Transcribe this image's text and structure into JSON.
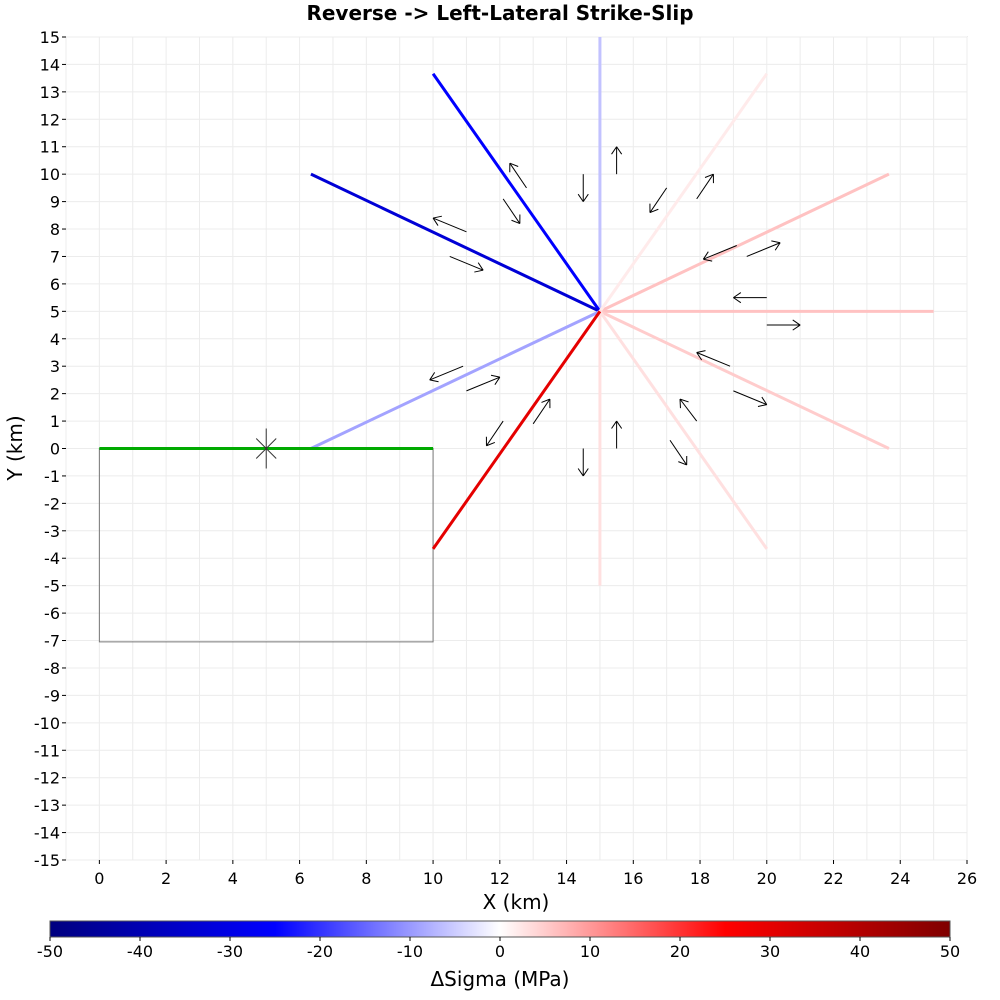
{
  "chart_data": {
    "type": "line",
    "title": "Reverse -> Left-Lateral Strike-Slip",
    "xlabel": "X (km)",
    "ylabel": "Y (km)",
    "xlim": [
      -1,
      26
    ],
    "ylim": [
      -15,
      15
    ],
    "xticks": [
      0,
      2,
      4,
      6,
      8,
      10,
      12,
      14,
      16,
      18,
      20,
      22,
      24,
      26
    ],
    "yticks": [
      -15,
      -14,
      -13,
      -12,
      -11,
      -10,
      -9,
      -8,
      -7,
      -6,
      -5,
      -4,
      -3,
      -2,
      -1,
      0,
      1,
      2,
      3,
      4,
      5,
      6,
      7,
      8,
      9,
      10,
      11,
      12,
      13,
      14,
      15
    ],
    "grid": true,
    "colorbar": {
      "label": "ΔSigma (MPa)",
      "min": -50,
      "max": 50,
      "ticks": [
        -50,
        -40,
        -30,
        -20,
        -10,
        0,
        10,
        20,
        30,
        40,
        50
      ],
      "colors": [
        "#00007f",
        "#0000ff",
        "#ffffff",
        "#ff0000",
        "#7f0000"
      ]
    },
    "source_fault": {
      "trace": [
        [
          0,
          0
        ],
        [
          10,
          0
        ]
      ],
      "color": "#00aa00",
      "footprint": [
        [
          0,
          0
        ],
        [
          10,
          0
        ],
        [
          10,
          -7.05
        ],
        [
          0,
          -7.05
        ]
      ],
      "hypocenter": [
        5,
        0
      ]
    },
    "receiver_faults": [
      {
        "end": [
          15,
          15
        ],
        "stress": -6
      },
      {
        "end": [
          10,
          13.66
        ],
        "stress": -25
      },
      {
        "end": [
          6.34,
          10
        ],
        "stress": -33
      },
      {
        "end": [
          25,
          5
        ],
        "stress": 6
      },
      {
        "end": [
          6.34,
          0
        ],
        "stress": -9
      },
      {
        "end": [
          23.66,
          10
        ],
        "stress": 6
      },
      {
        "end": [
          20,
          13.66
        ],
        "stress": 2
      },
      {
        "end": [
          23.66,
          0
        ],
        "stress": 5
      },
      {
        "end": [
          20,
          -3.66
        ],
        "stress": 3
      },
      {
        "end": [
          15,
          -5
        ],
        "stress": 3
      },
      {
        "end": [
          10,
          -3.66
        ],
        "stress": 30
      }
    ],
    "hub": [
      15,
      5
    ],
    "slip_arrows": [
      {
        "from": [
          15.5,
          10
        ],
        "to": [
          15.5,
          11
        ]
      },
      {
        "from": [
          14.5,
          10
        ],
        "to": [
          14.5,
          9
        ]
      },
      {
        "from": [
          12.8,
          9.5
        ],
        "to": [
          12.3,
          10.4
        ]
      },
      {
        "from": [
          12.1,
          9.1
        ],
        "to": [
          12.6,
          8.2
        ]
      },
      {
        "from": [
          11.0,
          7.9
        ],
        "to": [
          10.0,
          8.4
        ]
      },
      {
        "from": [
          10.5,
          7.0
        ],
        "to": [
          11.5,
          6.5
        ]
      },
      {
        "from": [
          17.0,
          9.5
        ],
        "to": [
          16.5,
          8.6
        ]
      },
      {
        "from": [
          17.9,
          9.1
        ],
        "to": [
          18.4,
          10.0
        ]
      },
      {
        "from": [
          19.1,
          7.4
        ],
        "to": [
          18.1,
          6.9
        ]
      },
      {
        "from": [
          19.4,
          7.0
        ],
        "to": [
          20.4,
          7.5
        ]
      },
      {
        "from": [
          20.0,
          5.5
        ],
        "to": [
          19.0,
          5.5
        ]
      },
      {
        "from": [
          20.0,
          4.5
        ],
        "to": [
          21.0,
          4.5
        ]
      },
      {
        "from": [
          18.9,
          3.0
        ],
        "to": [
          17.9,
          3.5
        ]
      },
      {
        "from": [
          19.0,
          2.1
        ],
        "to": [
          20.0,
          1.6
        ]
      },
      {
        "from": [
          17.9,
          1.0
        ],
        "to": [
          17.4,
          1.8
        ]
      },
      {
        "from": [
          17.1,
          0.3
        ],
        "to": [
          17.6,
          -0.6
        ]
      },
      {
        "from": [
          15.5,
          0.0
        ],
        "to": [
          15.5,
          1.0
        ]
      },
      {
        "from": [
          14.5,
          0.0
        ],
        "to": [
          14.5,
          -1.0
        ]
      },
      {
        "from": [
          13.0,
          0.9
        ],
        "to": [
          13.5,
          1.8
        ]
      },
      {
        "from": [
          12.1,
          1.0
        ],
        "to": [
          11.6,
          0.1
        ]
      },
      {
        "from": [
          11.0,
          2.1
        ],
        "to": [
          12.0,
          2.6
        ]
      },
      {
        "from": [
          10.9,
          3.0
        ],
        "to": [
          9.9,
          2.5
        ]
      }
    ]
  }
}
